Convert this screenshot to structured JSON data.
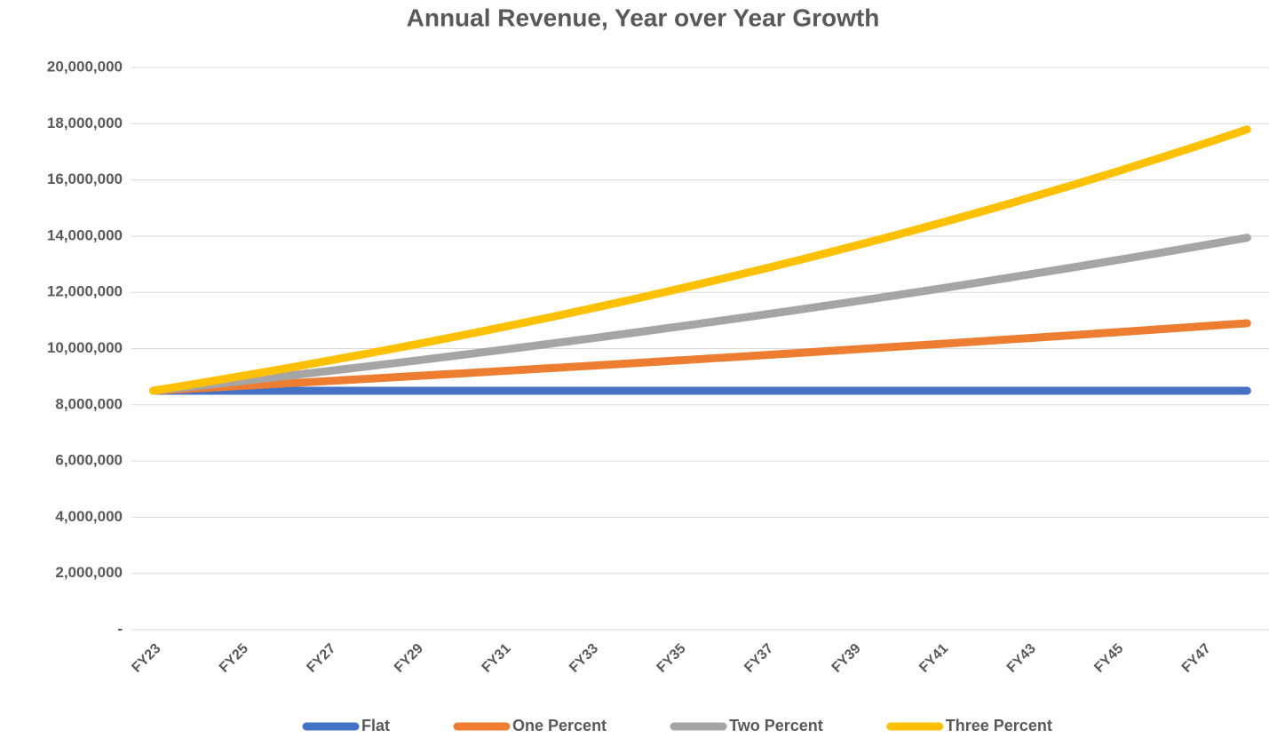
{
  "chart_data": {
    "type": "line",
    "title": "Annual Revenue, Year over Year Growth",
    "categories": [
      "FY23",
      null,
      "FY25",
      null,
      "FY27",
      null,
      "FY29",
      null,
      "FY31",
      null,
      "FY33",
      null,
      "FY35",
      null,
      "FY37",
      null,
      "FY39",
      null,
      "FY41",
      null,
      "FY43",
      null,
      "FY45",
      null,
      "FY47",
      null
    ],
    "series": [
      {
        "name": "Flat",
        "color": "#4472c4",
        "values": [
          8500000,
          8500000,
          8500000,
          8500000,
          8500000,
          8500000,
          8500000,
          8500000,
          8500000,
          8500000,
          8500000,
          8500000,
          8500000,
          8500000,
          8500000,
          8500000,
          8500000,
          8500000,
          8500000,
          8500000,
          8500000,
          8500000,
          8500000,
          8500000,
          8500000,
          8500000
        ]
      },
      {
        "name": "One Percent",
        "color": "#ed7d31",
        "values": [
          8500000,
          8585000,
          8671000,
          8758000,
          8845000,
          8934000,
          9023000,
          9113000,
          9204000,
          9296000,
          9389000,
          9483000,
          9578000,
          9674000,
          9771000,
          9868000,
          9967000,
          10067000,
          10167000,
          10269000,
          10372000,
          10475000,
          10580000,
          10686000,
          10793000,
          10901000
        ]
      },
      {
        "name": "Two Percent",
        "color": "#a5a5a5",
        "values": [
          8500000,
          8670000,
          8843000,
          9020000,
          9201000,
          9385000,
          9572000,
          9764000,
          9959000,
          10158000,
          10361000,
          10569000,
          10780000,
          10996000,
          11216000,
          11440000,
          11669000,
          11902000,
          12140000,
          12383000,
          12631000,
          12883000,
          13141000,
          13404000,
          13672000,
          13945000
        ]
      },
      {
        "name": "Three Percent",
        "color": "#ffc000",
        "values": [
          8500000,
          8755000,
          9018000,
          9288000,
          9567000,
          9854000,
          10149000,
          10454000,
          10768000,
          11091000,
          11423000,
          11766000,
          12119000,
          12483000,
          12857000,
          13243000,
          13640000,
          14049000,
          14471000,
          14905000,
          15352000,
          15813000,
          16287000,
          16775000,
          17279000,
          17797000
        ]
      }
    ],
    "ylim": [
      0,
      20000000
    ],
    "yticks": [
      {
        "value": 0,
        "label": "-"
      },
      {
        "value": 2000000,
        "label": "2,000,000"
      },
      {
        "value": 4000000,
        "label": "4,000,000"
      },
      {
        "value": 6000000,
        "label": "6,000,000"
      },
      {
        "value": 8000000,
        "label": "8,000,000"
      },
      {
        "value": 10000000,
        "label": "10,000,000"
      },
      {
        "value": 12000000,
        "label": "12,000,000"
      },
      {
        "value": 14000000,
        "label": "14,000,000"
      },
      {
        "value": 16000000,
        "label": "16,000,000"
      },
      {
        "value": 18000000,
        "label": "18,000,000"
      },
      {
        "value": 20000000,
        "label": "20,000,000"
      }
    ],
    "grid": true,
    "legend": "bottom"
  }
}
